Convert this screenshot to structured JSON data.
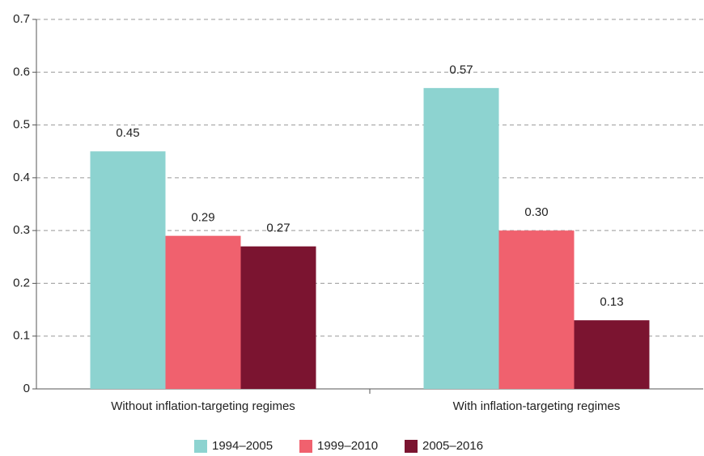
{
  "chart_data": {
    "type": "bar",
    "categories": [
      "Without inflation-targeting regimes",
      "With inflation-targeting regimes"
    ],
    "series": [
      {
        "name": "1994–2005",
        "color": "#8dd3d0",
        "values": [
          0.45,
          0.57
        ],
        "value_labels": [
          "0.45",
          "0.57"
        ]
      },
      {
        "name": "1999–2010",
        "color": "#f0616e",
        "values": [
          0.29,
          0.3
        ],
        "value_labels": [
          "0.29",
          "0.30"
        ]
      },
      {
        "name": "2005–2016",
        "color": "#7b1430",
        "values": [
          0.27,
          0.13
        ],
        "value_labels": [
          "0.27",
          "0.13"
        ]
      }
    ],
    "ylim": [
      0,
      0.7
    ],
    "yticks": [
      0,
      0.1,
      0.2,
      0.3,
      0.4,
      0.5,
      0.6,
      0.7
    ],
    "grid": true,
    "legend": "bottom"
  }
}
